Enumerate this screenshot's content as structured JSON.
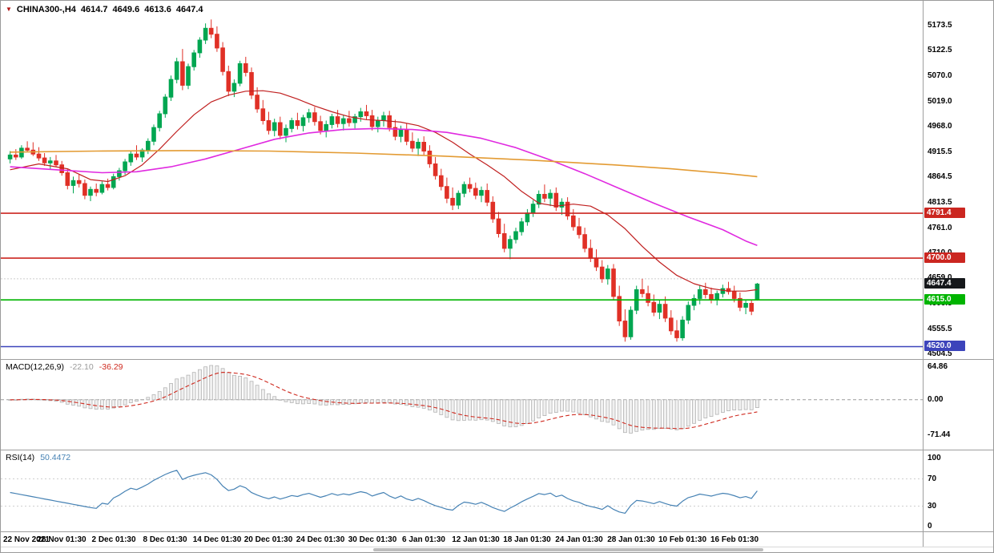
{
  "header": {
    "symbol": "CHINA300-,H4",
    "open": "4614.7",
    "high": "4649.6",
    "low": "4613.6",
    "close": "4647.4"
  },
  "colors": {
    "background": "#ffffff",
    "candle_up": "#00a651",
    "candle_down": "#e03026",
    "ma_fast": "#c01f1f",
    "ma_mid": "#e02ae0",
    "ma_slow": "#e39b33",
    "macd_hist_fill": "#f0f0f0",
    "macd_hist_stroke": "#b3b3b3",
    "macd_signal": "#cf2a1f",
    "rsi_line": "#4682b4",
    "current_price_bg": "#15181b",
    "axis_text": "#000000"
  },
  "chart_data": [
    {
      "id": "main",
      "type": "candlestick",
      "title": "CHINA300-,H4",
      "timeframe": "H4",
      "ohlc_display": {
        "open": 4614.7,
        "high": 4649.6,
        "low": 4613.6,
        "close": 4647.4
      },
      "y_axis": {
        "ticks": [
          5173.5,
          5122.5,
          5070.0,
          5019.0,
          4968.0,
          4915.5,
          4864.5,
          4813.5,
          4761.0,
          4710.0,
          4659.0,
          4606.5,
          4555.5,
          4504.5
        ],
        "range": [
          4493,
          5224
        ]
      },
      "x_axis": {
        "label_step": 9,
        "labels": [
          "22 Nov 2021",
          "26 Nov 01:30",
          "2 Dec 01:30",
          "8 Dec 01:30",
          "14 Dec 01:30",
          "20 Dec 01:30",
          "24 Dec 01:30",
          "30 Dec 01:30",
          "6 Jan 01:30",
          "12 Jan 01:30",
          "18 Jan 01:30",
          "24 Jan 01:30",
          "28 Jan 01:30",
          "10 Feb 01:30",
          "16 Feb 01:30"
        ]
      },
      "dotted_level": 4658.0,
      "current_price": 4647.4,
      "h_lines": [
        {
          "value": 4791.4,
          "color": "#cb2620"
        },
        {
          "value": 4700.0,
          "color": "#cb2620"
        },
        {
          "value": 4615.0,
          "color": "#00b400"
        },
        {
          "value": 4520.0,
          "color": "#3c44bb"
        }
      ],
      "ma_lines": [
        {
          "name": "ma-fast-red-line",
          "color": "#c01f1f",
          "width": 1.2,
          "points": [
            [
              0,
              4880
            ],
            [
              5,
              4892
            ],
            [
              10,
              4882
            ],
            [
              14,
              4860
            ],
            [
              17,
              4856
            ],
            [
              20,
              4868
            ],
            [
              23,
              4890
            ],
            [
              26,
              4922
            ],
            [
              29,
              4958
            ],
            [
              32,
              4992
            ],
            [
              35,
              5018
            ],
            [
              38,
              5032
            ],
            [
              41,
              5040
            ],
            [
              44,
              5041
            ],
            [
              47,
              5036
            ],
            [
              50,
              5024
            ],
            [
              53,
              5010
            ],
            [
              56,
              4998
            ],
            [
              59,
              4988
            ],
            [
              62,
              4982
            ],
            [
              65,
              4980
            ],
            [
              68,
              4977
            ],
            [
              71,
              4970
            ],
            [
              74,
              4956
            ],
            [
              77,
              4936
            ],
            [
              80,
              4912
            ],
            [
              83,
              4890
            ],
            [
              86,
              4866
            ],
            [
              89,
              4836
            ],
            [
              92,
              4812
            ],
            [
              95,
              4806
            ],
            [
              98,
              4810
            ],
            [
              101,
              4806
            ],
            [
              104,
              4788
            ],
            [
              107,
              4760
            ],
            [
              110,
              4724
            ],
            [
              113,
              4692
            ],
            [
              116,
              4665
            ],
            [
              119,
              4648
            ],
            [
              122,
              4638
            ],
            [
              125,
              4633
            ],
            [
              128,
              4633
            ],
            [
              130,
              4636
            ]
          ]
        },
        {
          "name": "ma-mid-magenta-line",
          "color": "#e02ae0",
          "width": 1.6,
          "points": [
            [
              0,
              4886
            ],
            [
              8,
              4880
            ],
            [
              16,
              4874
            ],
            [
              22,
              4876
            ],
            [
              28,
              4886
            ],
            [
              34,
              4902
            ],
            [
              40,
              4922
            ],
            [
              46,
              4942
            ],
            [
              52,
              4955
            ],
            [
              58,
              4962
            ],
            [
              64,
              4964
            ],
            [
              70,
              4962
            ],
            [
              76,
              4956
            ],
            [
              82,
              4944
            ],
            [
              88,
              4925
            ],
            [
              94,
              4900
            ],
            [
              100,
              4872
            ],
            [
              106,
              4842
            ],
            [
              112,
              4812
            ],
            [
              118,
              4784
            ],
            [
              124,
              4758
            ],
            [
              128,
              4735
            ],
            [
              130,
              4726
            ]
          ]
        },
        {
          "name": "ma-slow-orange-line",
          "color": "#e39b33",
          "width": 1.6,
          "points": [
            [
              0,
              4916
            ],
            [
              15,
              4918
            ],
            [
              30,
              4919
            ],
            [
              45,
              4918
            ],
            [
              60,
              4914
            ],
            [
              75,
              4908
            ],
            [
              90,
              4900
            ],
            [
              105,
              4890
            ],
            [
              115,
              4882
            ],
            [
              125,
              4872
            ],
            [
              130,
              4866
            ]
          ]
        }
      ],
      "candles": [
        [
          4902,
          4918,
          4893,
          4910
        ],
        [
          4910,
          4922,
          4900,
          4906
        ],
        [
          4906,
          4930,
          4902,
          4924
        ],
        [
          4924,
          4938,
          4916,
          4920
        ],
        [
          4920,
          4936,
          4908,
          4912
        ],
        [
          4912,
          4926,
          4898,
          4904
        ],
        [
          4904,
          4914,
          4888,
          4894
        ],
        [
          4894,
          4906,
          4880,
          4898
        ],
        [
          4898,
          4910,
          4886,
          4890
        ],
        [
          4890,
          4898,
          4868,
          4874
        ],
        [
          4874,
          4882,
          4840,
          4848
        ],
        [
          4848,
          4866,
          4832,
          4858
        ],
        [
          4858,
          4870,
          4844,
          4852
        ],
        [
          4852,
          4860,
          4820,
          4828
        ],
        [
          4828,
          4846,
          4816,
          4840
        ],
        [
          4840,
          4852,
          4826,
          4834
        ],
        [
          4834,
          4856,
          4830,
          4850
        ],
        [
          4850,
          4862,
          4838,
          4844
        ],
        [
          4844,
          4872,
          4840,
          4866
        ],
        [
          4866,
          4884,
          4858,
          4878
        ],
        [
          4878,
          4902,
          4870,
          4896
        ],
        [
          4896,
          4918,
          4888,
          4912
        ],
        [
          4912,
          4930,
          4900,
          4906
        ],
        [
          4906,
          4924,
          4896,
          4920
        ],
        [
          4920,
          4944,
          4912,
          4938
        ],
        [
          4938,
          4972,
          4930,
          4966
        ],
        [
          4966,
          5000,
          4958,
          4994
        ],
        [
          4994,
          5034,
          4986,
          5028
        ],
        [
          5028,
          5072,
          5020,
          5064
        ],
        [
          5064,
          5108,
          5056,
          5100
        ],
        [
          5100,
          5126,
          5042,
          5052
        ],
        [
          5052,
          5096,
          5044,
          5090
        ],
        [
          5090,
          5124,
          5082,
          5118
        ],
        [
          5118,
          5150,
          5108,
          5144
        ],
        [
          5144,
          5178,
          5136,
          5168
        ],
        [
          5168,
          5186,
          5148,
          5156
        ],
        [
          5156,
          5172,
          5120,
          5128
        ],
        [
          5128,
          5140,
          5072,
          5080
        ],
        [
          5080,
          5092,
          5030,
          5040
        ],
        [
          5040,
          5064,
          5028,
          5056
        ],
        [
          5056,
          5102,
          5050,
          5096
        ],
        [
          5096,
          5110,
          5070,
          5078
        ],
        [
          5078,
          5088,
          5024,
          5032
        ],
        [
          5032,
          5048,
          4996,
          5004
        ],
        [
          5004,
          5022,
          4972,
          4980
        ],
        [
          4980,
          4998,
          4952,
          4960
        ],
        [
          4960,
          4984,
          4948,
          4976
        ],
        [
          4976,
          4988,
          4942,
          4950
        ],
        [
          4950,
          4972,
          4936,
          4964
        ],
        [
          4964,
          4986,
          4956,
          4980
        ],
        [
          4980,
          4996,
          4962,
          4970
        ],
        [
          4970,
          4992,
          4958,
          4986
        ],
        [
          4986,
          5004,
          4976,
          4996
        ],
        [
          4996,
          5008,
          4970,
          4978
        ],
        [
          4978,
          4990,
          4952,
          4960
        ],
        [
          4960,
          4980,
          4946,
          4972
        ],
        [
          4972,
          4994,
          4964,
          4988
        ],
        [
          4988,
          5002,
          4966,
          4974
        ],
        [
          4974,
          4992,
          4960,
          4984
        ],
        [
          4984,
          5000,
          4968,
          4976
        ],
        [
          4976,
          4994,
          4964,
          4988
        ],
        [
          4988,
          5006,
          4978,
          4998
        ],
        [
          4998,
          5012,
          4982,
          4990
        ],
        [
          4990,
          5002,
          4960,
          4968
        ],
        [
          4968,
          4988,
          4956,
          4980
        ],
        [
          4980,
          4998,
          4968,
          4990
        ],
        [
          4990,
          5000,
          4958,
          4966
        ],
        [
          4966,
          4982,
          4940,
          4948
        ],
        [
          4948,
          4970,
          4936,
          4962
        ],
        [
          4962,
          4974,
          4930,
          4938
        ],
        [
          4938,
          4956,
          4916,
          4924
        ],
        [
          4924,
          4944,
          4908,
          4936
        ],
        [
          4936,
          4948,
          4910,
          4918
        ],
        [
          4918,
          4930,
          4884,
          4892
        ],
        [
          4892,
          4906,
          4860,
          4868
        ],
        [
          4868,
          4882,
          4838,
          4846
        ],
        [
          4846,
          4864,
          4812,
          4822
        ],
        [
          4822,
          4844,
          4798,
          4808
        ],
        [
          4808,
          4838,
          4800,
          4832
        ],
        [
          4832,
          4856,
          4824,
          4850
        ],
        [
          4850,
          4864,
          4834,
          4842
        ],
        [
          4842,
          4854,
          4820,
          4828
        ],
        [
          4828,
          4846,
          4814,
          4838
        ],
        [
          4838,
          4852,
          4806,
          4814
        ],
        [
          4814,
          4826,
          4772,
          4780
        ],
        [
          4780,
          4794,
          4742,
          4750
        ],
        [
          4750,
          4770,
          4712,
          4720
        ],
        [
          4720,
          4746,
          4698,
          4738
        ],
        [
          4738,
          4762,
          4730,
          4754
        ],
        [
          4754,
          4782,
          4746,
          4774
        ],
        [
          4774,
          4800,
          4766,
          4792
        ],
        [
          4792,
          4818,
          4784,
          4810
        ],
        [
          4810,
          4838,
          4802,
          4830
        ],
        [
          4830,
          4850,
          4814,
          4822
        ],
        [
          4822,
          4840,
          4806,
          4832
        ],
        [
          4832,
          4844,
          4796,
          4804
        ],
        [
          4804,
          4822,
          4788,
          4814
        ],
        [
          4814,
          4824,
          4778,
          4786
        ],
        [
          4786,
          4800,
          4756,
          4764
        ],
        [
          4764,
          4782,
          4740,
          4748
        ],
        [
          4748,
          4762,
          4712,
          4720
        ],
        [
          4720,
          4738,
          4692,
          4700
        ],
        [
          4700,
          4718,
          4674,
          4682
        ],
        [
          4682,
          4696,
          4650,
          4658
        ],
        [
          4658,
          4686,
          4646,
          4678
        ],
        [
          4678,
          4688,
          4614,
          4622
        ],
        [
          4622,
          4644,
          4562,
          4572
        ],
        [
          4572,
          4596,
          4530,
          4540
        ],
        [
          4540,
          4602,
          4534,
          4594
        ],
        [
          4594,
          4644,
          4586,
          4636
        ],
        [
          4636,
          4658,
          4620,
          4628
        ],
        [
          4628,
          4644,
          4602,
          4610
        ],
        [
          4610,
          4626,
          4582,
          4590
        ],
        [
          4590,
          4614,
          4576,
          4606
        ],
        [
          4606,
          4622,
          4570,
          4578
        ],
        [
          4578,
          4594,
          4544,
          4552
        ],
        [
          4552,
          4574,
          4530,
          4538
        ],
        [
          4538,
          4582,
          4532,
          4574
        ],
        [
          4574,
          4612,
          4566,
          4604
        ],
        [
          4604,
          4626,
          4594,
          4618
        ],
        [
          4618,
          4644,
          4606,
          4636
        ],
        [
          4636,
          4650,
          4618,
          4626
        ],
        [
          4626,
          4640,
          4608,
          4616
        ],
        [
          4616,
          4634,
          4604,
          4628
        ],
        [
          4628,
          4646,
          4620,
          4638
        ],
        [
          4638,
          4652,
          4626,
          4632
        ],
        [
          4632,
          4644,
          4610,
          4618
        ],
        [
          4618,
          4630,
          4592,
          4600
        ],
        [
          4600,
          4614,
          4586,
          4608
        ],
        [
          4608,
          4616,
          4584,
          4592
        ],
        [
          4614.7,
          4649.6,
          4613.6,
          4647.4
        ]
      ]
    },
    {
      "id": "macd",
      "type": "bar",
      "label": "MACD(12,26,9)",
      "params": [
        12,
        26,
        9
      ],
      "main_value": "-22.10",
      "signal_value": "-36.29",
      "y_axis": {
        "ticks": [
          64.86,
          0.0,
          -71.44
        ],
        "range": [
          -100,
          80
        ]
      },
      "derived_from": "main candle closes (EMA12-EMA26 histogram, EMA9 signal)"
    },
    {
      "id": "rsi",
      "type": "line",
      "label": "RSI(14)",
      "period": 14,
      "value": "50.4472",
      "levels": [
        70,
        30
      ],
      "y_axis": {
        "ticks": [
          100,
          70,
          30,
          0
        ],
        "range": [
          0,
          100
        ]
      },
      "derived_from": "main candle closes (Wilder RSI 14)"
    }
  ]
}
